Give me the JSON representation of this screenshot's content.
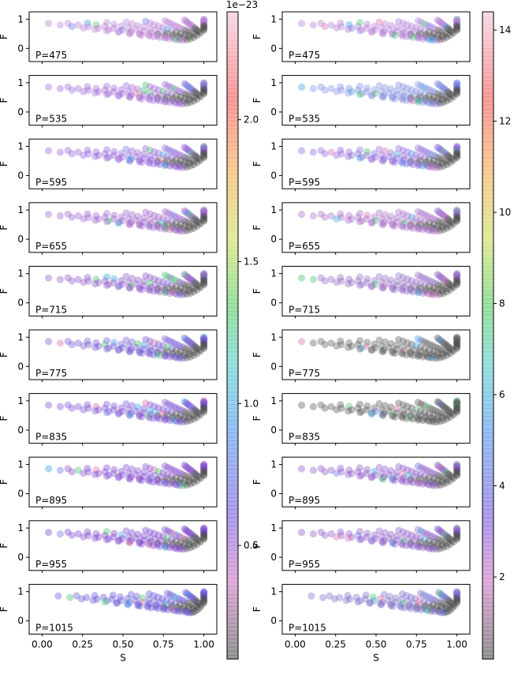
{
  "chart_data": {
    "type": "scatter",
    "x_label": "S",
    "y_label": "F",
    "x_ticks": [
      "0.00",
      "0.25",
      "0.50",
      "0.75",
      "1.00"
    ],
    "y_ticks": [
      "0",
      "1"
    ],
    "xlim": [
      -0.08,
      1.08
    ],
    "ylim": [
      -0.45,
      1.25
    ],
    "panels": [
      "P=475",
      "P=535",
      "P=595",
      "P=655",
      "P=715",
      "P=775",
      "P=835",
      "P=895",
      "P=955",
      "P=1015"
    ],
    "colorbars": [
      {
        "offset_label": "1e−23",
        "ticks": [
          "0.5",
          "1.0",
          "1.5",
          "2.0"
        ],
        "tick_values": [
          0.5,
          1.0,
          1.5,
          2.0
        ],
        "range": [
          0.1,
          2.38
        ],
        "colormap": "gist_stern_like"
      },
      {
        "offset_label": "",
        "ticks": [
          "2",
          "4",
          "6",
          "8",
          "10",
          "12",
          "14"
        ],
        "tick_values": [
          2,
          4,
          6,
          8,
          10,
          12,
          14
        ],
        "range": [
          0.2,
          14.4
        ],
        "colormap": "gist_stern_like"
      }
    ],
    "columns": [
      {
        "name": "left",
        "panel_colors": [
          "#b57ad1",
          "#9a63d6",
          "#8f5bd8",
          "#9b5ec7",
          "#8a55c6",
          "#6f52d0",
          "#7a4dd1",
          "#8048cc",
          "#7a3fca",
          "#5f4fd6"
        ]
      },
      {
        "name": "right",
        "panel_colors": [
          "#b07ad8",
          "#7f88e0",
          "#8b63d8",
          "#a569c6",
          "#8f66c2",
          "#5a5a5a",
          "#555555",
          "#8a55c6",
          "#8a55c6",
          "#7a6ac6"
        ]
      }
    ],
    "point_model": "each panel: ~12 curves of points from (S,F)=(x0,top) rising to (1,1); gray points along lower branches, colored points along upper branches"
  }
}
